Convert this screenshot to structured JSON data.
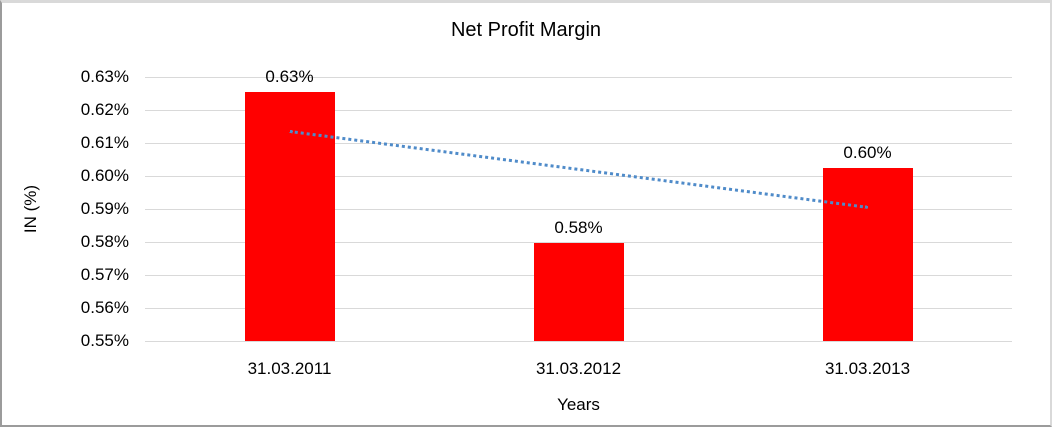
{
  "chart_data": {
    "type": "bar",
    "title": "Net Profit Margin",
    "xlabel": "Years",
    "ylabel": "IN (%)",
    "categories": [
      "31.03.2011",
      "31.03.2012",
      "31.03.2013"
    ],
    "values": [
      0.63,
      0.58,
      0.6
    ],
    "data_labels": [
      "0.63%",
      "0.58%",
      "0.60%"
    ],
    "plotted_values": [
      0.6255,
      0.5798,
      0.6025
    ],
    "y_ticks": [
      "0.63%",
      "0.62%",
      "0.61%",
      "0.60%",
      "0.59%",
      "0.58%",
      "0.57%",
      "0.56%",
      "0.55%"
    ],
    "y_tick_values": [
      0.63,
      0.62,
      0.61,
      0.6,
      0.59,
      0.58,
      0.57,
      0.56,
      0.55
    ],
    "ylim": [
      0.55,
      0.63
    ],
    "grid": true,
    "legend": "none",
    "bar_color": "#ff0000",
    "gridline_color": "#d9d9d9",
    "text_color": "#000000",
    "trendline": {
      "type": "linear",
      "style": "dotted",
      "color": "#4f8bc9",
      "start_value": 0.614,
      "end_value": 0.591
    }
  }
}
